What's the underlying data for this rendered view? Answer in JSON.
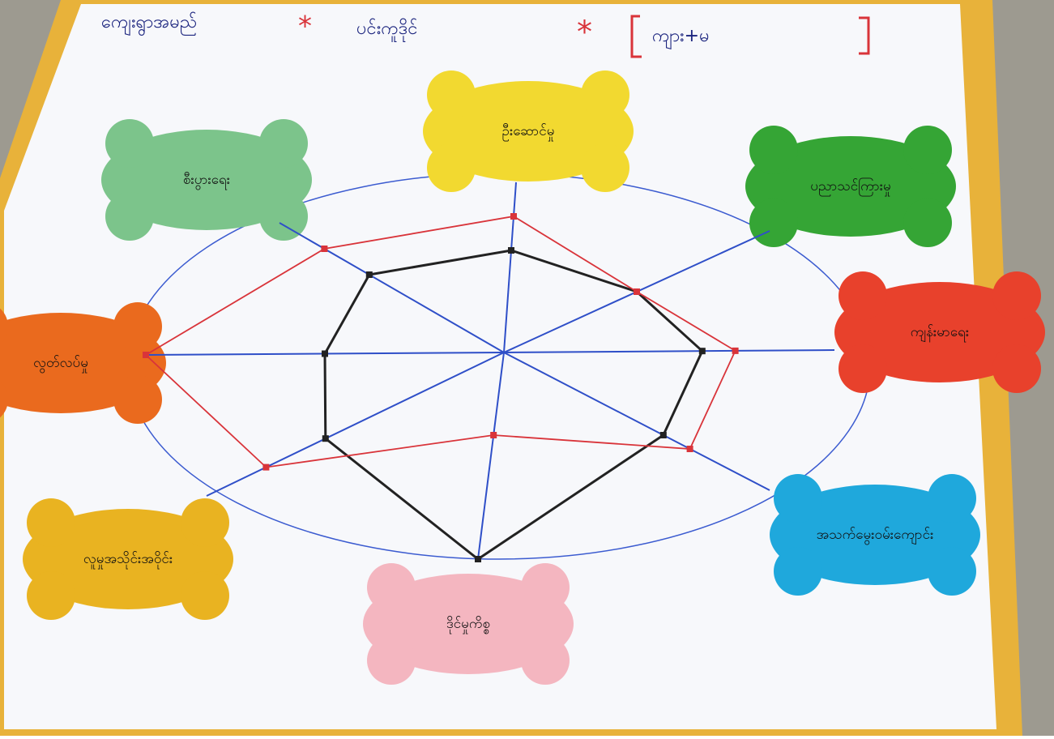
{
  "header": {
    "title": "ကျေးရွာအမည်",
    "village": "ပင်းကူဒိုင်",
    "group": "ကျား+မ"
  },
  "chart_data": {
    "type": "radar",
    "categories": [
      "ဦးဆောင်မှု",
      "ပညာသင်ကြားမှု",
      "ကျန်းမာရေး",
      "အသက်မွေးဝမ်းကျောင်း",
      "ဒိုင်မှုကိစ္စ",
      "လူမှုအသိုင်းအဝိုင်း",
      "လွတ်လပ်မှု",
      "စီးပွားရေး"
    ],
    "rlim": [
      0,
      10
    ],
    "series": [
      {
        "color": "#222222",
        "values": [
          6,
          5,
          6,
          6,
          10,
          6,
          5,
          6
        ]
      },
      {
        "color": "#d9343a",
        "values": [
          8,
          5,
          7,
          7,
          4,
          8,
          10,
          8
        ]
      }
    ]
  }
}
